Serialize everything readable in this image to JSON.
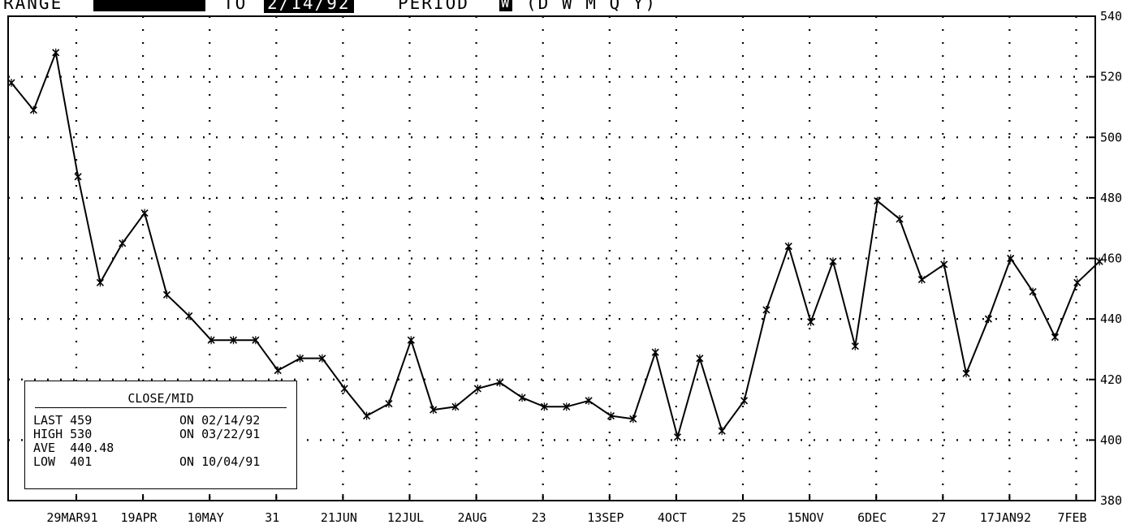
{
  "header": {
    "range_label": "RANGE",
    "range_from": "",
    "to_label": "TO",
    "range_to": "2/14/92",
    "period_label": "PERIOD",
    "period_value": "W",
    "period_options": "(D W M Q Y)"
  },
  "stats_box": {
    "title": "CLOSE/MID",
    "rows": [
      {
        "label": "LAST 459",
        "date": "ON 02/14/92"
      },
      {
        "label": "HIGH 530",
        "date": "ON 03/22/91"
      },
      {
        "label": "AVE  440.48",
        "date": ""
      },
      {
        "label": "LOW  401",
        "date": "ON 10/04/91"
      }
    ]
  },
  "chart_data": {
    "type": "line",
    "grid": true,
    "ylim": [
      380,
      540
    ],
    "y_ticks": [
      "380",
      "400",
      "420",
      "440",
      "460",
      "480",
      "500",
      "520",
      "540"
    ],
    "x_ticks": [
      "29MAR91",
      "19APR",
      "10MAY",
      "31",
      "21JUN",
      "12JUL",
      "2AUG",
      "23",
      "13SEP",
      "4OCT",
      "25",
      "15NOV",
      "6DEC",
      "27",
      "17JAN92",
      "7FEB"
    ],
    "series": [
      {
        "values": [
          518,
          509,
          528,
          487,
          452,
          465,
          475,
          448,
          441,
          433,
          433,
          433,
          423,
          427,
          427,
          417,
          408,
          412,
          433,
          410,
          411,
          417,
          419,
          414,
          411,
          411,
          413,
          408,
          407,
          429,
          401,
          427,
          403,
          413,
          443,
          464,
          439,
          459,
          431,
          479,
          473,
          453,
          458,
          422,
          440,
          460,
          449,
          434,
          452,
          459
        ]
      }
    ]
  }
}
